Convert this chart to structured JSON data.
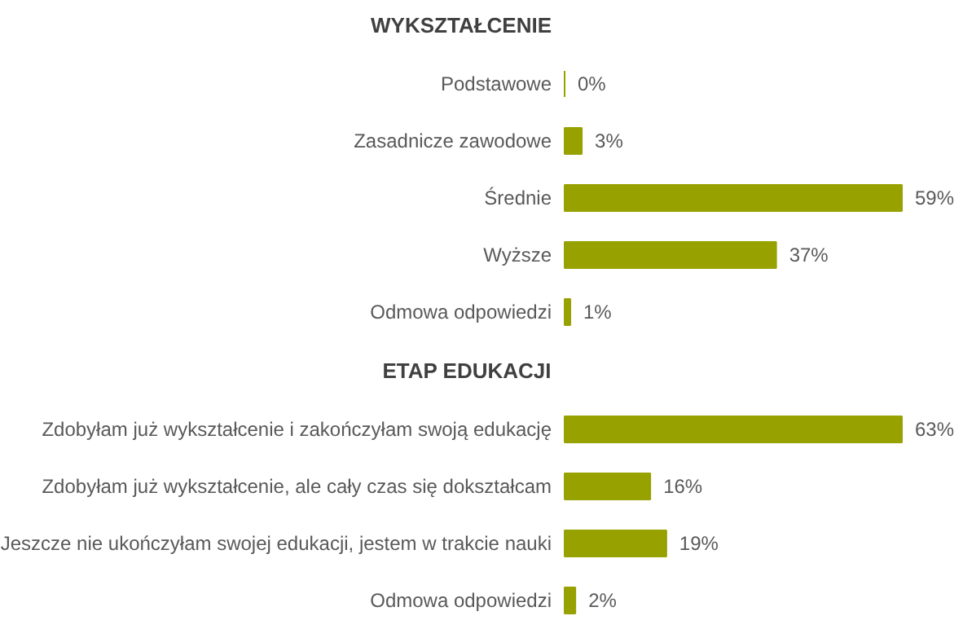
{
  "chart_data": [
    {
      "type": "bar",
      "orientation": "horizontal",
      "title": "WYKSZTAŁCENIE",
      "categories": [
        "Podstawowe",
        "Zasadnicze zawodowe",
        "Średnie",
        "Wyższe",
        "Odmowa odpowiedzi"
      ],
      "values": [
        0,
        3,
        59,
        37,
        1
      ],
      "value_labels": [
        "0%",
        "3%",
        "59%",
        "37%",
        "1%"
      ],
      "color": "#97a100"
    },
    {
      "type": "bar",
      "orientation": "horizontal",
      "title": "ETAP EDUKACJI",
      "categories": [
        "Zdobyłam już wykształcenie i zakończyłam swoją edukację",
        "Zdobyłam już wykształcenie, ale cały czas się dokształcam",
        "Jeszcze nie ukończyłam swojej edukacji, jestem w trakcie nauki",
        "Odmowa odpowiedzi"
      ],
      "values": [
        63,
        16,
        19,
        2
      ],
      "value_labels": [
        "63%",
        "16%",
        "19%",
        "2%"
      ],
      "color": "#97a100"
    }
  ]
}
